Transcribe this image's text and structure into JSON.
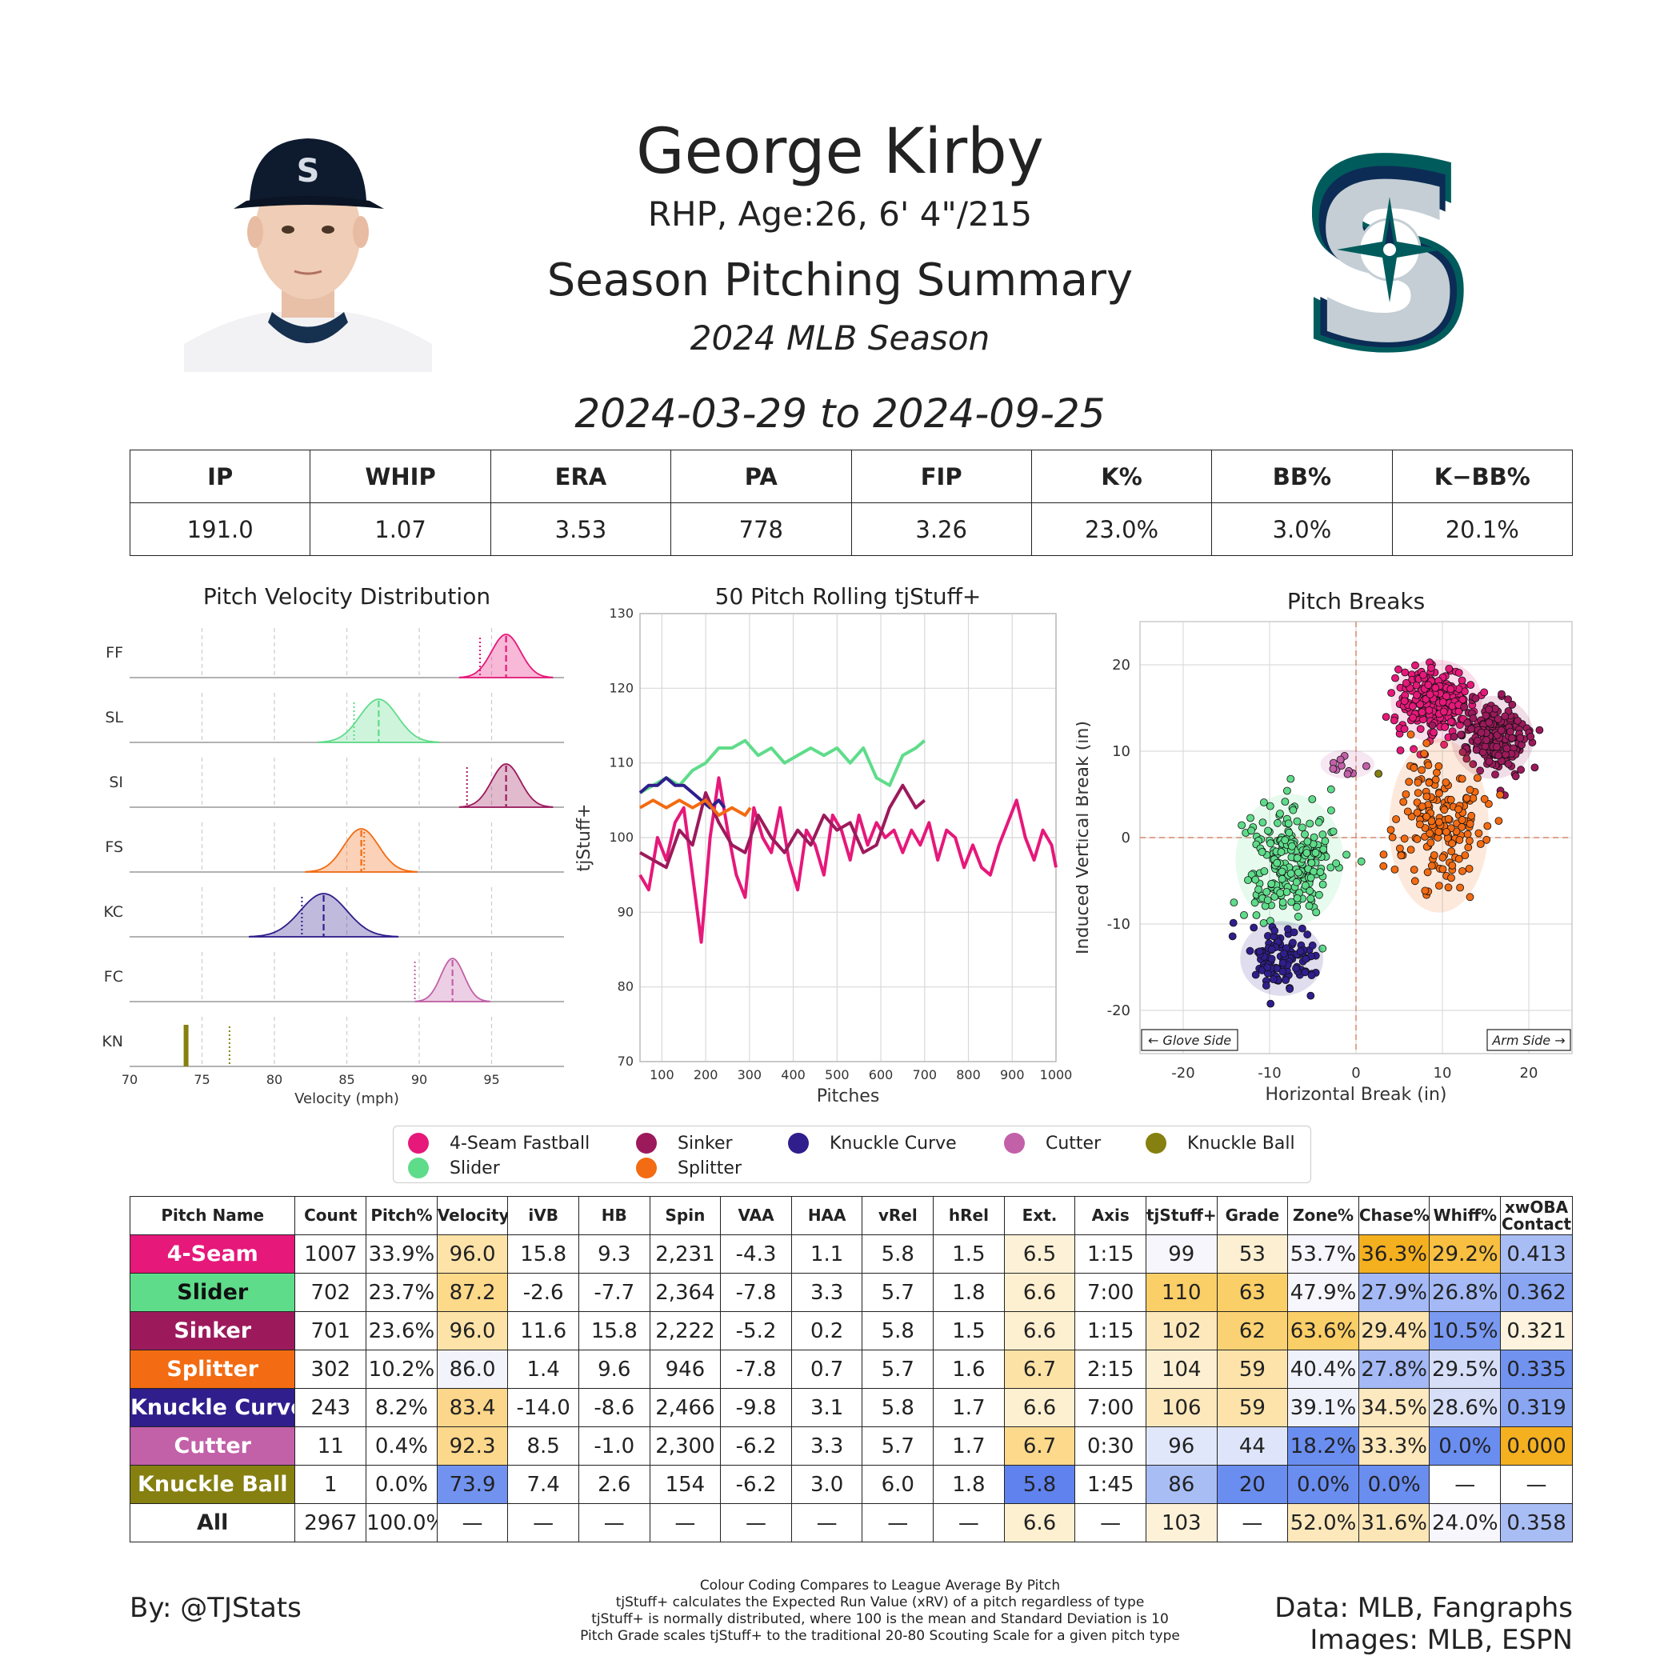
{
  "header": {
    "name": "George Kirby",
    "bio": "RHP, Age:26, 6' 4\"/215",
    "title": "Season Pitching Summary",
    "season": "2024 MLB Season",
    "dates": "2024-03-29 to 2024-09-25"
  },
  "summary": {
    "headers": [
      "IP",
      "WHIP",
      "ERA",
      "PA",
      "FIP",
      "K%",
      "BB%",
      "K−BB%"
    ],
    "values": [
      "191.0",
      "1.07",
      "3.53",
      "778",
      "3.26",
      "23.0%",
      "3.0%",
      "20.1%"
    ]
  },
  "colors": {
    "FF": "#e6187a",
    "SL": "#5fdc8a",
    "SI": "#9c1a5c",
    "FS": "#f36b12",
    "KC": "#2f1e8c",
    "FC": "#c260a8",
    "KN": "#858010",
    "low": "#6b8ef0",
    "high": "#f4b21c"
  },
  "chart_data": [
    {
      "type": "area",
      "title": "Pitch Velocity Distribution",
      "xlabel": "Velocity (mph)",
      "xlim": [
        70,
        100
      ],
      "xticks": [
        "70",
        "75",
        "80",
        "85",
        "90",
        "95"
      ],
      "series": [
        {
          "name": "FF",
          "mean": 96.0,
          "league_avg": 94.2,
          "sd": 1.0
        },
        {
          "name": "SL",
          "mean": 87.2,
          "league_avg": 85.5,
          "sd": 1.3
        },
        {
          "name": "SI",
          "mean": 96.0,
          "league_avg": 93.3,
          "sd": 1.0
        },
        {
          "name": "FS",
          "mean": 86.0,
          "league_avg": 86.2,
          "sd": 1.2
        },
        {
          "name": "KC",
          "mean": 83.4,
          "league_avg": 81.9,
          "sd": 1.6
        },
        {
          "name": "FC",
          "mean": 92.3,
          "league_avg": 89.7,
          "sd": 0.8
        },
        {
          "name": "KN",
          "mean": 73.9,
          "league_avg": 76.9,
          "sd": 0
        }
      ]
    },
    {
      "type": "line",
      "title": "50 Pitch Rolling tjStuff+",
      "xlabel": "Pitches",
      "ylabel": "tjStuff+",
      "xlim": [
        50,
        1000
      ],
      "ylim": [
        70,
        130
      ],
      "xticks": [
        "100",
        "200",
        "300",
        "400",
        "500",
        "600",
        "700",
        "800",
        "900",
        "1000"
      ],
      "yticks": [
        "70",
        "80",
        "90",
        "100",
        "110",
        "120",
        "130"
      ],
      "series": [
        {
          "name": "FF",
          "x": [
            50,
            70,
            90,
            110,
            130,
            150,
            170,
            190,
            210,
            230,
            250,
            270,
            290,
            310,
            330,
            350,
            370,
            390,
            410,
            430,
            450,
            470,
            490,
            510,
            530,
            550,
            570,
            590,
            610,
            630,
            650,
            670,
            690,
            710,
            730,
            750,
            770,
            790,
            810,
            830,
            850,
            870,
            890,
            910,
            930,
            950,
            970,
            990,
            1000
          ],
          "y": [
            95,
            93,
            100,
            97,
            102,
            104,
            95,
            86,
            100,
            108,
            101,
            95,
            92,
            104,
            100,
            98,
            104,
            97,
            93,
            101,
            99,
            95,
            103,
            101,
            97,
            103,
            99,
            102,
            100,
            101,
            98,
            101,
            99,
            102,
            97,
            101,
            100,
            96,
            99,
            96,
            95,
            99,
            102,
            105,
            100,
            97,
            101,
            99,
            96
          ]
        },
        {
          "name": "SL",
          "x": [
            50,
            80,
            110,
            140,
            170,
            200,
            230,
            260,
            290,
            320,
            350,
            380,
            410,
            440,
            470,
            500,
            530,
            560,
            590,
            620,
            650,
            680,
            700
          ],
          "y": [
            106,
            107,
            108,
            107,
            109,
            110,
            112,
            112,
            113,
            111,
            112,
            110,
            111,
            112,
            111,
            112,
            110,
            112,
            108,
            107,
            111,
            112,
            113
          ]
        },
        {
          "name": "SI",
          "x": [
            50,
            80,
            110,
            140,
            170,
            200,
            230,
            260,
            290,
            320,
            350,
            380,
            410,
            440,
            470,
            500,
            530,
            560,
            590,
            620,
            650,
            680,
            700
          ],
          "y": [
            98,
            97,
            96,
            101,
            99,
            106,
            102,
            99,
            98,
            103,
            100,
            98,
            101,
            99,
            103,
            101,
            102,
            98,
            99,
            104,
            107,
            104,
            105
          ]
        },
        {
          "name": "KC",
          "x": [
            50,
            70,
            90,
            110,
            130,
            150,
            170,
            190,
            210,
            230,
            243
          ],
          "y": [
            106,
            107,
            107,
            108,
            107,
            107,
            106,
            105,
            104,
            105,
            104
          ]
        },
        {
          "name": "FS",
          "x": [
            50,
            80,
            110,
            140,
            170,
            200,
            230,
            260,
            290,
            302
          ],
          "y": [
            104,
            105,
            104,
            105,
            104,
            105,
            103,
            104,
            103,
            104
          ]
        }
      ]
    },
    {
      "type": "scatter",
      "title": "Pitch Breaks",
      "xlabel": "Horizontal Break (in)",
      "ylabel": "Induced Vertical Break (in)",
      "xlim": [
        -25,
        25
      ],
      "ylim": [
        -25,
        25
      ],
      "xticks": [
        "-20",
        "-10",
        "0",
        "10",
        "20"
      ],
      "yticks": [
        "-20",
        "-10",
        "0",
        "10",
        "20"
      ],
      "annotations": [
        "← Glove Side",
        "Arm Side →"
      ],
      "clusters": [
        {
          "name": "FF",
          "cx": 9.3,
          "cy": 15.8,
          "sx": 2.2,
          "sy": 2.0,
          "n": 260
        },
        {
          "name": "SI",
          "cx": 15.8,
          "cy": 11.6,
          "sx": 2.0,
          "sy": 2.0,
          "n": 200
        },
        {
          "name": "SL",
          "cx": -7.7,
          "cy": -2.6,
          "sx": 2.6,
          "sy": 3.2,
          "n": 240
        },
        {
          "name": "FS",
          "cx": 9.6,
          "cy": 1.4,
          "sx": 2.4,
          "sy": 4.2,
          "n": 170
        },
        {
          "name": "KC",
          "cx": -8.6,
          "cy": -14.0,
          "sx": 2.0,
          "sy": 1.8,
          "n": 120
        },
        {
          "name": "FC",
          "cx": -1.0,
          "cy": 8.5,
          "sx": 1.3,
          "sy": 0.7,
          "n": 11
        },
        {
          "name": "KN",
          "cx": 2.6,
          "cy": 7.4,
          "sx": 0,
          "sy": 0,
          "n": 1
        }
      ]
    }
  ],
  "legend": [
    {
      "name": "4-Seam Fastball",
      "key": "FF"
    },
    {
      "name": "Sinker",
      "key": "SI"
    },
    {
      "name": "Knuckle Curve",
      "key": "KC"
    },
    {
      "name": "Cutter",
      "key": "FC"
    },
    {
      "name": "Knuckle Ball",
      "key": "KN"
    },
    {
      "name": "Slider",
      "key": "SL"
    },
    {
      "name": "Splitter",
      "key": "FS"
    }
  ],
  "pitch_table": {
    "headers": [
      "Pitch Name",
      "Count",
      "Pitch%",
      "Velocity",
      "iVB",
      "HB",
      "Spin",
      "VAA",
      "HAA",
      "vRel",
      "hRel",
      "Ext.",
      "Axis",
      "tjStuff+",
      "Grade",
      "Zone%",
      "Chase%",
      "Whiff%",
      "xwOBA Contact"
    ],
    "rows": [
      {
        "key": "FF",
        "cells": [
          "4-Seam",
          "1007",
          "33.9%",
          "96.0",
          "15.8",
          "9.3",
          "2,231",
          "-4.3",
          "1.1",
          "5.8",
          "1.5",
          "6.5",
          "1:15",
          "99",
          "53",
          "53.7%",
          "36.3%",
          "29.2%",
          "0.413"
        ]
      },
      {
        "key": "SL",
        "cells": [
          "Slider",
          "702",
          "23.7%",
          "87.2",
          "-2.6",
          "-7.7",
          "2,364",
          "-7.8",
          "3.3",
          "5.7",
          "1.8",
          "6.6",
          "7:00",
          "110",
          "63",
          "47.9%",
          "27.9%",
          "26.8%",
          "0.362"
        ]
      },
      {
        "key": "SI",
        "cells": [
          "Sinker",
          "701",
          "23.6%",
          "96.0",
          "11.6",
          "15.8",
          "2,222",
          "-5.2",
          "0.2",
          "5.8",
          "1.5",
          "6.6",
          "1:15",
          "102",
          "62",
          "63.6%",
          "29.4%",
          "10.5%",
          "0.321"
        ]
      },
      {
        "key": "FS",
        "cells": [
          "Splitter",
          "302",
          "10.2%",
          "86.0",
          "1.4",
          "9.6",
          "946",
          "-7.8",
          "0.7",
          "5.7",
          "1.6",
          "6.7",
          "2:15",
          "104",
          "59",
          "40.4%",
          "27.8%",
          "29.5%",
          "0.335"
        ]
      },
      {
        "key": "KC",
        "cells": [
          "Knuckle Curve",
          "243",
          "8.2%",
          "83.4",
          "-14.0",
          "-8.6",
          "2,466",
          "-9.8",
          "3.1",
          "5.8",
          "1.7",
          "6.6",
          "7:00",
          "106",
          "59",
          "39.1%",
          "34.5%",
          "28.6%",
          "0.319"
        ]
      },
      {
        "key": "FC",
        "cells": [
          "Cutter",
          "11",
          "0.4%",
          "92.3",
          "8.5",
          "-1.0",
          "2,300",
          "-6.2",
          "3.3",
          "5.7",
          "1.7",
          "6.7",
          "0:30",
          "96",
          "44",
          "18.2%",
          "33.3%",
          "0.0%",
          "0.000"
        ]
      },
      {
        "key": "KN",
        "cells": [
          "Knuckle Ball",
          "1",
          "0.0%",
          "73.9",
          "7.4",
          "2.6",
          "154",
          "-6.2",
          "3.0",
          "6.0",
          "1.8",
          "5.8",
          "1:45",
          "86",
          "20",
          "0.0%",
          "0.0%",
          "—",
          "—"
        ]
      },
      {
        "key": "ALL",
        "cells": [
          "All",
          "2967",
          "100.0%",
          "—",
          "—",
          "—",
          "—",
          "—",
          "—",
          "—",
          "—",
          "6.6",
          "—",
          "103",
          "—",
          "52.0%",
          "31.6%",
          "24.0%",
          "0.358"
        ]
      }
    ],
    "cell_colors": {
      "FF": {
        "3": "#fde3a8",
        "11": "#fdf2d8",
        "13": "#f6f6fc",
        "14": "#fdf0d2",
        "15": "#f6f6fc",
        "16": "#f5b020",
        "17": "#f8bf40",
        "18": "#a9bdf5"
      },
      "SL": {
        "3": "#fdd98a",
        "11": "#fdf0d0",
        "13": "#fbcf68",
        "14": "#fbcf68",
        "15": "#f6f6fc",
        "16": "#a4b9f5",
        "17": "#a4b9f5",
        "18": "#8aa6f2"
      },
      "SI": {
        "3": "#fde3a8",
        "11": "#fdf0d0",
        "13": "#fde8bc",
        "14": "#fbd273",
        "15": "#fbcf68",
        "16": "#fde4ae",
        "17": "#7a99f1",
        "18": "#fdf3de"
      },
      "FS": {
        "3": "#f2f3fb",
        "11": "#fde2a6",
        "13": "#fdf0d2",
        "14": "#fde3aa",
        "15": "#f0f2fb",
        "16": "#a4b9f5",
        "17": "#d6def8",
        "18": "#7193ef"
      },
      "KC": {
        "3": "#fcd68a",
        "11": "#fdf0d0",
        "13": "#fde8bc",
        "14": "#fde3aa",
        "15": "#f0f2fb",
        "16": "#fde9c0",
        "17": "#d6def8",
        "18": "#8aa6f2"
      },
      "FC": {
        "3": "#fcd88c",
        "11": "#fdd98c",
        "13": "#e0e7fa",
        "14": "#dee5fa",
        "15": "#6a8df0",
        "16": "#fde8bc",
        "17": "#6a8df0",
        "18": "#f5b020"
      },
      "KN": {
        "3": "#7193ef",
        "11": "#5f82ee",
        "13": "#a9bdf5",
        "14": "#6a8df0",
        "15": "#6a8df0",
        "16": "#6a8df0"
      },
      "ALL": {
        "11": "#fdf0d0",
        "13": "#fdf2d8",
        "15": "#fde8bc",
        "16": "#fde6b6",
        "17": "#f6f6fc",
        "18": "#a9bdf5"
      }
    }
  },
  "footer": {
    "left": "By: @TJStats",
    "right1": "Data: MLB, Fangraphs",
    "right2": "Images: MLB, ESPN",
    "notes": [
      "Colour Coding Compares to League Average By Pitch",
      "tjStuff+ calculates the Expected Run Value (xRV) of a pitch regardless of type",
      "tjStuff+ is normally distributed, where 100 is the mean and Standard Deviation is 10",
      "Pitch Grade scales tjStuff+ to the traditional 20-80 Scouting Scale for a given pitch type"
    ]
  }
}
